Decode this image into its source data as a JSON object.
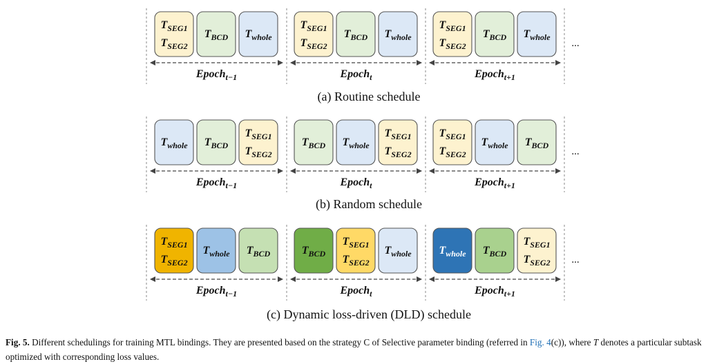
{
  "figure": {
    "epoch_base": "Epoch",
    "epoch_subscripts": [
      "t−1",
      "t",
      "t+1"
    ],
    "task_base": "T",
    "task_subscripts": {
      "SEG1": "SEG1",
      "SEG2": "SEG2",
      "BCD": "BCD",
      "whole": "whole"
    },
    "ellipsis": "...",
    "panels": [
      {
        "caption": "(a) Routine schedule",
        "epochs": [
          [
            {
              "task": "SEG",
              "color": "#fdf2cf"
            },
            {
              "task": "BCD",
              "color": "#e2efd9"
            },
            {
              "task": "whole",
              "color": "#dce8f6"
            }
          ],
          [
            {
              "task": "SEG",
              "color": "#fdf2cf"
            },
            {
              "task": "BCD",
              "color": "#e2efd9"
            },
            {
              "task": "whole",
              "color": "#dce8f6"
            }
          ],
          [
            {
              "task": "SEG",
              "color": "#fdf2cf"
            },
            {
              "task": "BCD",
              "color": "#e2efd9"
            },
            {
              "task": "whole",
              "color": "#dce8f6"
            }
          ]
        ]
      },
      {
        "caption": "(b) Random schedule",
        "epochs": [
          [
            {
              "task": "whole",
              "color": "#dce8f6"
            },
            {
              "task": "BCD",
              "color": "#e2efd9"
            },
            {
              "task": "SEG",
              "color": "#fdf2cf"
            }
          ],
          [
            {
              "task": "BCD",
              "color": "#e2efd9"
            },
            {
              "task": "whole",
              "color": "#dce8f6"
            },
            {
              "task": "SEG",
              "color": "#fdf2cf"
            }
          ],
          [
            {
              "task": "SEG",
              "color": "#fdf2cf"
            },
            {
              "task": "whole",
              "color": "#dce8f6"
            },
            {
              "task": "BCD",
              "color": "#e2efd9"
            }
          ]
        ]
      },
      {
        "caption": "(c) Dynamic loss-driven (DLD) schedule",
        "epochs": [
          [
            {
              "task": "SEG",
              "color": "#f0b400"
            },
            {
              "task": "whole",
              "color": "#9dc2e6"
            },
            {
              "task": "BCD",
              "color": "#c5e0b3"
            }
          ],
          [
            {
              "task": "BCD",
              "color": "#70ad47"
            },
            {
              "task": "SEG",
              "color": "#ffd966"
            },
            {
              "task": "whole",
              "color": "#dce8f6"
            }
          ],
          [
            {
              "task": "whole",
              "color": "#2e74b5"
            },
            {
              "task": "BCD",
              "color": "#a9d18e"
            },
            {
              "task": "SEG",
              "color": "#fdf2cf"
            }
          ]
        ]
      }
    ]
  },
  "caption": {
    "label": "Fig. 5.",
    "text_1": "Different schedulings for training MTL bindings. They are presented based on the strategy C of Selective parameter binding (referred in",
    "link": "Fig. 4",
    "text_2": "(c)), where",
    "t_symbol": "T",
    "text_3": "denotes a particular subtask optimized with corresponding loss values."
  }
}
